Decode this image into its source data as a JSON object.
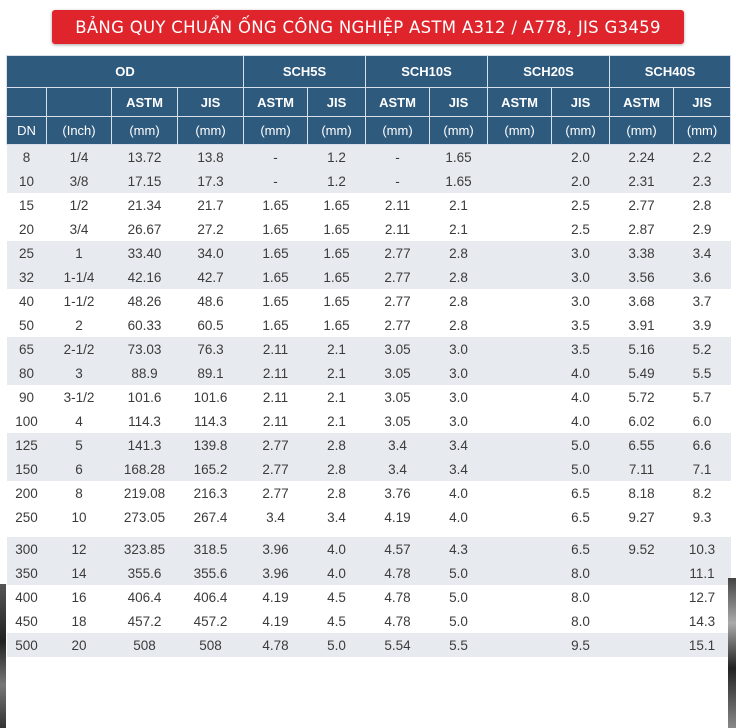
{
  "title": "BẢNG QUY CHUẨN ỐNG CÔNG NGHIỆP ASTM A312 / A778, JIS G3459",
  "header": {
    "od": "OD",
    "groups": [
      "SCH5S",
      "SCH10S",
      "SCH20S",
      "SCH40S"
    ],
    "sub": [
      "ASTM",
      "JIS",
      "ASTM",
      "JIS",
      "ASTM",
      "JIS",
      "ASTM",
      "JIS",
      "ASTM",
      "JIS"
    ],
    "units": [
      "DN",
      "(Inch)",
      "(mm)",
      "(mm)",
      "(mm)",
      "(mm)",
      "(mm)",
      "(mm)",
      "(mm)",
      "(mm)",
      "(mm)",
      "(mm)"
    ]
  },
  "rows": [
    [
      "8",
      "1/4",
      "13.72",
      "13.8",
      "-",
      "1.2",
      "-",
      "1.65",
      "",
      "2.0",
      "2.24",
      "2.2"
    ],
    [
      "10",
      "3/8",
      "17.15",
      "17.3",
      "-",
      "1.2",
      "-",
      "1.65",
      "",
      "2.0",
      "2.31",
      "2.3"
    ],
    [
      "15",
      "1/2",
      "21.34",
      "21.7",
      "1.65",
      "1.65",
      "2.11",
      "2.1",
      "",
      "2.5",
      "2.77",
      "2.8"
    ],
    [
      "20",
      "3/4",
      "26.67",
      "27.2",
      "1.65",
      "1.65",
      "2.11",
      "2.1",
      "",
      "2.5",
      "2.87",
      "2.9"
    ],
    [
      "25",
      "1",
      "33.40",
      "34.0",
      "1.65",
      "1.65",
      "2.77",
      "2.8",
      "",
      "3.0",
      "3.38",
      "3.4"
    ],
    [
      "32",
      "1-1/4",
      "42.16",
      "42.7",
      "1.65",
      "1.65",
      "2.77",
      "2.8",
      "",
      "3.0",
      "3.56",
      "3.6"
    ],
    [
      "40",
      "1-1/2",
      "48.26",
      "48.6",
      "1.65",
      "1.65",
      "2.77",
      "2.8",
      "",
      "3.0",
      "3.68",
      "3.7"
    ],
    [
      "50",
      "2",
      "60.33",
      "60.5",
      "1.65",
      "1.65",
      "2.77",
      "2.8",
      "",
      "3.5",
      "3.91",
      "3.9"
    ],
    [
      "65",
      "2-1/2",
      "73.03",
      "76.3",
      "2.11",
      "2.1",
      "3.05",
      "3.0",
      "",
      "3.5",
      "5.16",
      "5.2"
    ],
    [
      "80",
      "3",
      "88.9",
      "89.1",
      "2.11",
      "2.1",
      "3.05",
      "3.0",
      "",
      "4.0",
      "5.49",
      "5.5"
    ],
    [
      "90",
      "3-1/2",
      "101.6",
      "101.6",
      "2.11",
      "2.1",
      "3.05",
      "3.0",
      "",
      "4.0",
      "5.72",
      "5.7"
    ],
    [
      "100",
      "4",
      "114.3",
      "114.3",
      "2.11",
      "2.1",
      "3.05",
      "3.0",
      "",
      "4.0",
      "6.02",
      "6.0"
    ],
    [
      "125",
      "5",
      "141.3",
      "139.8",
      "2.77",
      "2.8",
      "3.4",
      "3.4",
      "",
      "5.0",
      "6.55",
      "6.6"
    ],
    [
      "150",
      "6",
      "168.28",
      "165.2",
      "2.77",
      "2.8",
      "3.4",
      "3.4",
      "",
      "5.0",
      "7.11",
      "7.1"
    ],
    [
      "200",
      "8",
      "219.08",
      "216.3",
      "2.77",
      "2.8",
      "3.76",
      "4.0",
      "",
      "6.5",
      "8.18",
      "8.2"
    ],
    [
      "250",
      "10",
      "273.05",
      "267.4",
      "3.4",
      "3.4",
      "4.19",
      "4.0",
      "",
      "6.5",
      "9.27",
      "9.3"
    ],
    [
      "300",
      "12",
      "323.85",
      "318.5",
      "3.96",
      "4.0",
      "4.57",
      "4.3",
      "",
      "6.5",
      "9.52",
      "10.3"
    ],
    [
      "350",
      "14",
      "355.6",
      "355.6",
      "3.96",
      "4.0",
      "4.78",
      "5.0",
      "",
      "8.0",
      "",
      "11.1"
    ],
    [
      "400",
      "16",
      "406.4",
      "406.4",
      "4.19",
      "4.5",
      "4.78",
      "5.0",
      "",
      "8.0",
      "",
      "12.7"
    ],
    [
      "450",
      "18",
      "457.2",
      "457.2",
      "4.19",
      "4.5",
      "4.78",
      "5.0",
      "",
      "8.0",
      "",
      "14.3"
    ],
    [
      "500",
      "20",
      "508",
      "508",
      "4.78",
      "5.0",
      "5.54",
      "5.5",
      "",
      "9.5",
      "",
      "15.1"
    ]
  ]
}
